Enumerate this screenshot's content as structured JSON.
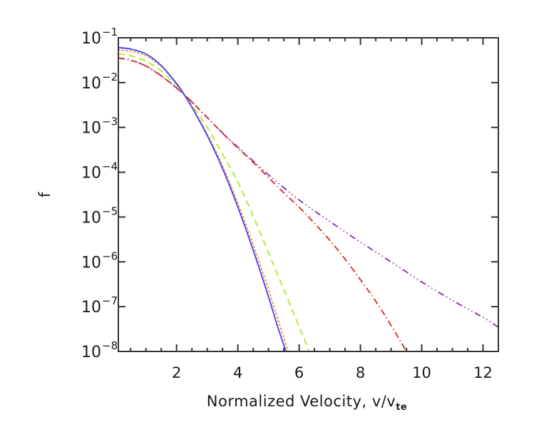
{
  "chart_data": {
    "type": "line",
    "title": "",
    "xlabel": "Normalized Velocity, v/v",
    "xlabel_subscript": "te",
    "ylabel": "f",
    "xlim": [
      0.1,
      12.5
    ],
    "ylim": [
      1e-08,
      0.1
    ],
    "yscale": "log",
    "grid": false,
    "legend": "none",
    "xticks": [
      2,
      4,
      6,
      8,
      10,
      12
    ],
    "xtick_labels": [
      "2",
      "4",
      "6",
      "8",
      "10",
      "12"
    ],
    "xminor_step": 0.5,
    "yticks": [
      -1,
      -2,
      -3,
      -4,
      -5,
      -6,
      -7,
      -8
    ],
    "ytick_labels": [
      {
        "base": "10",
        "exp": "−1"
      },
      {
        "base": "10",
        "exp": "−2"
      },
      {
        "base": "10",
        "exp": "−3"
      },
      {
        "base": "10",
        "exp": "−4"
      },
      {
        "base": "10",
        "exp": "−5"
      },
      {
        "base": "10",
        "exp": "−6"
      },
      {
        "base": "10",
        "exp": "−7"
      },
      {
        "base": "10",
        "exp": "−8"
      }
    ],
    "series": [
      {
        "name": "solid-blue",
        "color": "#3f3fff",
        "style": "solid",
        "x": [
          0.1,
          0.5,
          1.0,
          1.5,
          2.0,
          2.25,
          2.5,
          3.0,
          3.5,
          4.0,
          4.5,
          5.0,
          5.3,
          5.57
        ],
        "log10_y": [
          -1.22,
          -1.25,
          -1.36,
          -1.62,
          -2.02,
          -2.27,
          -2.55,
          -3.18,
          -3.92,
          -4.78,
          -5.74,
          -6.78,
          -7.45,
          -8.0
        ]
      },
      {
        "name": "dotted-orange",
        "color": "#f0a050",
        "style": "dotted",
        "x": [
          0.1,
          0.5,
          1.0,
          1.5,
          2.0,
          2.25,
          2.5,
          3.0,
          3.5,
          4.0,
          4.5,
          5.0,
          5.35,
          5.64
        ],
        "log10_y": [
          -1.27,
          -1.3,
          -1.4,
          -1.64,
          -2.03,
          -2.27,
          -2.54,
          -3.15,
          -3.86,
          -4.7,
          -5.62,
          -6.62,
          -7.37,
          -8.0
        ]
      },
      {
        "name": "dashed-green",
        "color": "#a6ee1c",
        "style": "dashed",
        "x": [
          0.1,
          0.5,
          1.0,
          1.5,
          2.0,
          2.25,
          2.5,
          3.0,
          3.5,
          4.0,
          4.5,
          5.0,
          5.5,
          6.0,
          6.33
        ],
        "log10_y": [
          -1.36,
          -1.4,
          -1.52,
          -1.74,
          -2.06,
          -2.27,
          -2.5,
          -3.0,
          -3.6,
          -4.22,
          -4.98,
          -5.8,
          -6.62,
          -7.45,
          -8.0
        ]
      },
      {
        "name": "dashdot-red",
        "color": "#dd2222",
        "style": "dashdot",
        "x": [
          0.1,
          0.5,
          1.0,
          1.5,
          2.0,
          2.25,
          2.5,
          3.0,
          3.5,
          4.0,
          4.5,
          5.0,
          5.5,
          6.0,
          6.5,
          7.0,
          7.5,
          8.0,
          8.5,
          9.0,
          9.5
        ],
        "log10_y": [
          -1.45,
          -1.5,
          -1.63,
          -1.85,
          -2.12,
          -2.27,
          -2.43,
          -2.78,
          -3.13,
          -3.46,
          -3.78,
          -4.12,
          -4.46,
          -4.78,
          -5.14,
          -5.52,
          -5.94,
          -6.4,
          -6.88,
          -7.42,
          -8.0
        ]
      },
      {
        "name": "dashdotdotdot-purple",
        "color": "#8a2aa8",
        "style": "dashdotdotdot",
        "x": [
          0.1,
          0.5,
          1.0,
          1.5,
          2.0,
          2.25,
          2.5,
          3.0,
          3.5,
          4.0,
          4.5,
          5.0,
          6.0,
          7.0,
          8.0,
          9.0,
          10.0,
          11.0,
          12.0,
          12.5
        ],
        "log10_y": [
          -1.45,
          -1.5,
          -1.63,
          -1.85,
          -2.12,
          -2.27,
          -2.43,
          -2.78,
          -3.12,
          -3.44,
          -3.75,
          -4.06,
          -4.62,
          -5.1,
          -5.56,
          -6.0,
          -6.45,
          -6.86,
          -7.24,
          -7.46
        ]
      }
    ]
  }
}
